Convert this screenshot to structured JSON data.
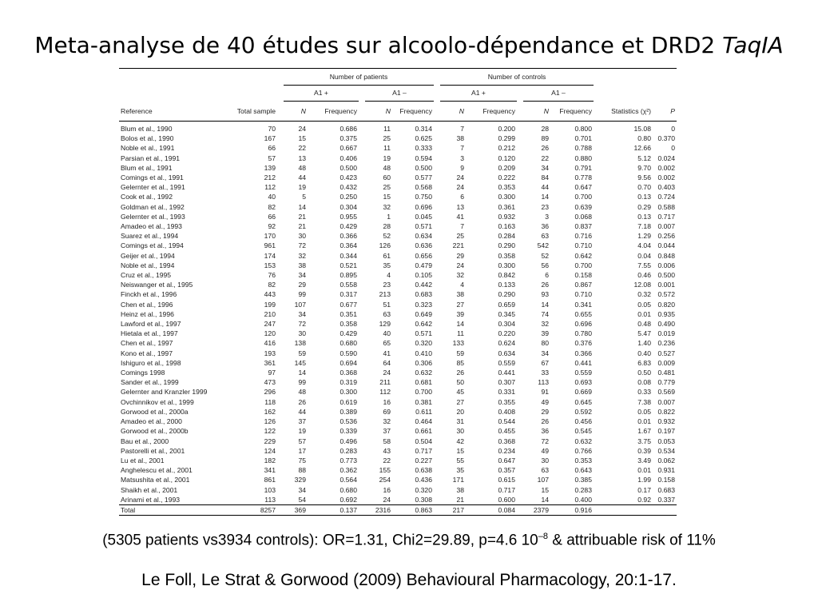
{
  "slide": {
    "title_main": "Meta-analyse de 40 études sur alcoolo-dépendance et DRD2 ",
    "title_italic": "TaqIA",
    "summary_main": "(5305 patients vs3934 controls): OR=1.31, Chi2=29.89, p=4.6 10",
    "summary_sup": "–8",
    "summary_tail": "  & attribuable risk of 11%",
    "citation": "Le Foll, Le Strat & Gorwood (2009) Behavioural Pharmacology, 20:1-17."
  },
  "table": {
    "group_patients": "Number of patients",
    "group_controls": "Number of controls",
    "a1_plus": "A1 +",
    "a1_minus": "A1 –",
    "col_reference": "Reference",
    "col_total": "Total sample",
    "col_n": "N",
    "col_freq": "Frequency",
    "col_stats": "Statistics (χ²)",
    "col_p": "P",
    "rows": [
      {
        "ref": "Blum et al., 1990",
        "total": "70",
        "pn1": "24",
        "pf1": "0.686",
        "pn2": "11",
        "pf2": "0.314",
        "cn1": "7",
        "cf1": "0.200",
        "cn2": "28",
        "cf2": "0.800",
        "chi": "15.08",
        "p": "0"
      },
      {
        "ref": "Bolos et al., 1990",
        "total": "167",
        "pn1": "15",
        "pf1": "0.375",
        "pn2": "25",
        "pf2": "0.625",
        "cn1": "38",
        "cf1": "0.299",
        "cn2": "89",
        "cf2": "0.701",
        "chi": "0.80",
        "p": "0.370"
      },
      {
        "ref": "Noble et al., 1991",
        "total": "66",
        "pn1": "22",
        "pf1": "0.667",
        "pn2": "11",
        "pf2": "0.333",
        "cn1": "7",
        "cf1": "0.212",
        "cn2": "26",
        "cf2": "0.788",
        "chi": "12.66",
        "p": "0"
      },
      {
        "ref": "Parsian et al., 1991",
        "total": "57",
        "pn1": "13",
        "pf1": "0.406",
        "pn2": "19",
        "pf2": "0.594",
        "cn1": "3",
        "cf1": "0.120",
        "cn2": "22",
        "cf2": "0.880",
        "chi": "5.12",
        "p": "0.024"
      },
      {
        "ref": "Blum et al., 1991",
        "total": "139",
        "pn1": "48",
        "pf1": "0.500",
        "pn2": "48",
        "pf2": "0.500",
        "cn1": "9",
        "cf1": "0.209",
        "cn2": "34",
        "cf2": "0.791",
        "chi": "9.70",
        "p": "0.002"
      },
      {
        "ref": "Comings et al., 1991",
        "total": "212",
        "pn1": "44",
        "pf1": "0.423",
        "pn2": "60",
        "pf2": "0.577",
        "cn1": "24",
        "cf1": "0.222",
        "cn2": "84",
        "cf2": "0.778",
        "chi": "9.56",
        "p": "0.002"
      },
      {
        "ref": "Gelernter et al., 1991",
        "total": "112",
        "pn1": "19",
        "pf1": "0.432",
        "pn2": "25",
        "pf2": "0.568",
        "cn1": "24",
        "cf1": "0.353",
        "cn2": "44",
        "cf2": "0.647",
        "chi": "0.70",
        "p": "0.403"
      },
      {
        "ref": "Cook et al., 1992",
        "total": "40",
        "pn1": "5",
        "pf1": "0.250",
        "pn2": "15",
        "pf2": "0.750",
        "cn1": "6",
        "cf1": "0.300",
        "cn2": "14",
        "cf2": "0.700",
        "chi": "0.13",
        "p": "0.724"
      },
      {
        "ref": "Goldman et al., 1992",
        "total": "82",
        "pn1": "14",
        "pf1": "0.304",
        "pn2": "32",
        "pf2": "0.696",
        "cn1": "13",
        "cf1": "0.361",
        "cn2": "23",
        "cf2": "0.639",
        "chi": "0.29",
        "p": "0.588"
      },
      {
        "ref": "Gelernter et al., 1993",
        "total": "66",
        "pn1": "21",
        "pf1": "0.955",
        "pn2": "1",
        "pf2": "0.045",
        "cn1": "41",
        "cf1": "0.932",
        "cn2": "3",
        "cf2": "0.068",
        "chi": "0.13",
        "p": "0.717"
      },
      {
        "ref": "Amadeo et al., 1993",
        "total": "92",
        "pn1": "21",
        "pf1": "0.429",
        "pn2": "28",
        "pf2": "0.571",
        "cn1": "7",
        "cf1": "0.163",
        "cn2": "36",
        "cf2": "0.837",
        "chi": "7.18",
        "p": "0.007"
      },
      {
        "ref": "Suarez et al., 1994",
        "total": "170",
        "pn1": "30",
        "pf1": "0.366",
        "pn2": "52",
        "pf2": "0.634",
        "cn1": "25",
        "cf1": "0.284",
        "cn2": "63",
        "cf2": "0.716",
        "chi": "1.29",
        "p": "0.256"
      },
      {
        "ref": "Comings et al., 1994",
        "total": "961",
        "pn1": "72",
        "pf1": "0.364",
        "pn2": "126",
        "pf2": "0.636",
        "cn1": "221",
        "cf1": "0.290",
        "cn2": "542",
        "cf2": "0.710",
        "chi": "4.04",
        "p": "0.044"
      },
      {
        "ref": "Geijer et al., 1994",
        "total": "174",
        "pn1": "32",
        "pf1": "0.344",
        "pn2": "61",
        "pf2": "0.656",
        "cn1": "29",
        "cf1": "0.358",
        "cn2": "52",
        "cf2": "0.642",
        "chi": "0.04",
        "p": "0.848"
      },
      {
        "ref": "Noble et al., 1994",
        "total": "153",
        "pn1": "38",
        "pf1": "0.521",
        "pn2": "35",
        "pf2": "0.479",
        "cn1": "24",
        "cf1": "0.300",
        "cn2": "56",
        "cf2": "0.700",
        "chi": "7.55",
        "p": "0.006"
      },
      {
        "ref": "Cruz et al., 1995",
        "total": "76",
        "pn1": "34",
        "pf1": "0.895",
        "pn2": "4",
        "pf2": "0.105",
        "cn1": "32",
        "cf1": "0.842",
        "cn2": "6",
        "cf2": "0.158",
        "chi": "0.46",
        "p": "0.500"
      },
      {
        "ref": "Neiswanger et al., 1995",
        "total": "82",
        "pn1": "29",
        "pf1": "0.558",
        "pn2": "23",
        "pf2": "0.442",
        "cn1": "4",
        "cf1": "0.133",
        "cn2": "26",
        "cf2": "0.867",
        "chi": "12.08",
        "p": "0.001"
      },
      {
        "ref": "Finckh et al., 1996",
        "total": "443",
        "pn1": "99",
        "pf1": "0.317",
        "pn2": "213",
        "pf2": "0.683",
        "cn1": "38",
        "cf1": "0.290",
        "cn2": "93",
        "cf2": "0.710",
        "chi": "0.32",
        "p": "0.572"
      },
      {
        "ref": "Chen et al., 1996",
        "total": "199",
        "pn1": "107",
        "pf1": "0.677",
        "pn2": "51",
        "pf2": "0.323",
        "cn1": "27",
        "cf1": "0.659",
        "cn2": "14",
        "cf2": "0.341",
        "chi": "0.05",
        "p": "0.820"
      },
      {
        "ref": "Heinz et al., 1996",
        "total": "210",
        "pn1": "34",
        "pf1": "0.351",
        "pn2": "63",
        "pf2": "0.649",
        "cn1": "39",
        "cf1": "0.345",
        "cn2": "74",
        "cf2": "0.655",
        "chi": "0.01",
        "p": "0.935"
      },
      {
        "ref": "Lawford et al., 1997",
        "total": "247",
        "pn1": "72",
        "pf1": "0.358",
        "pn2": "129",
        "pf2": "0.642",
        "cn1": "14",
        "cf1": "0.304",
        "cn2": "32",
        "cf2": "0.696",
        "chi": "0.48",
        "p": "0.490"
      },
      {
        "ref": "Hietala et al., 1997",
        "total": "120",
        "pn1": "30",
        "pf1": "0.429",
        "pn2": "40",
        "pf2": "0.571",
        "cn1": "11",
        "cf1": "0.220",
        "cn2": "39",
        "cf2": "0.780",
        "chi": "5.47",
        "p": "0.019"
      },
      {
        "ref": "Chen et al., 1997",
        "total": "416",
        "pn1": "138",
        "pf1": "0.680",
        "pn2": "65",
        "pf2": "0.320",
        "cn1": "133",
        "cf1": "0.624",
        "cn2": "80",
        "cf2": "0.376",
        "chi": "1.40",
        "p": "0.236"
      },
      {
        "ref": "Kono et al., 1997",
        "total": "193",
        "pn1": "59",
        "pf1": "0.590",
        "pn2": "41",
        "pf2": "0.410",
        "cn1": "59",
        "cf1": "0.634",
        "cn2": "34",
        "cf2": "0.366",
        "chi": "0.40",
        "p": "0.527"
      },
      {
        "ref": "Ishiguro et al., 1998",
        "total": "361",
        "pn1": "145",
        "pf1": "0.694",
        "pn2": "64",
        "pf2": "0.306",
        "cn1": "85",
        "cf1": "0.559",
        "cn2": "67",
        "cf2": "0.441",
        "chi": "6.83",
        "p": "0.009"
      },
      {
        "ref": "Comings 1998",
        "total": "97",
        "pn1": "14",
        "pf1": "0.368",
        "pn2": "24",
        "pf2": "0.632",
        "cn1": "26",
        "cf1": "0.441",
        "cn2": "33",
        "cf2": "0.559",
        "chi": "0.50",
        "p": "0.481"
      },
      {
        "ref": "Sander et al., 1999",
        "total": "473",
        "pn1": "99",
        "pf1": "0.319",
        "pn2": "211",
        "pf2": "0.681",
        "cn1": "50",
        "cf1": "0.307",
        "cn2": "113",
        "cf2": "0.693",
        "chi": "0.08",
        "p": "0.779"
      },
      {
        "ref": "Gelernter and Kranzler 1999",
        "total": "296",
        "pn1": "48",
        "pf1": "0.300",
        "pn2": "112",
        "pf2": "0.700",
        "cn1": "45",
        "cf1": "0.331",
        "cn2": "91",
        "cf2": "0.669",
        "chi": "0.33",
        "p": "0.569"
      },
      {
        "ref": "Ovchinnikov et al., 1999",
        "total": "118",
        "pn1": "26",
        "pf1": "0.619",
        "pn2": "16",
        "pf2": "0.381",
        "cn1": "27",
        "cf1": "0.355",
        "cn2": "49",
        "cf2": "0.645",
        "chi": "7.38",
        "p": "0.007"
      },
      {
        "ref": "Gorwood et al., 2000a",
        "total": "162",
        "pn1": "44",
        "pf1": "0.389",
        "pn2": "69",
        "pf2": "0.611",
        "cn1": "20",
        "cf1": "0.408",
        "cn2": "29",
        "cf2": "0.592",
        "chi": "0.05",
        "p": "0.822"
      },
      {
        "ref": "Amadeo et al., 2000",
        "total": "126",
        "pn1": "37",
        "pf1": "0.536",
        "pn2": "32",
        "pf2": "0.464",
        "cn1": "31",
        "cf1": "0.544",
        "cn2": "26",
        "cf2": "0.456",
        "chi": "0.01",
        "p": "0.932"
      },
      {
        "ref": "Gorwood et al., 2000b",
        "total": "122",
        "pn1": "19",
        "pf1": "0.339",
        "pn2": "37",
        "pf2": "0.661",
        "cn1": "30",
        "cf1": "0.455",
        "cn2": "36",
        "cf2": "0.545",
        "chi": "1.67",
        "p": "0.197"
      },
      {
        "ref": "Bau et al., 2000",
        "total": "229",
        "pn1": "57",
        "pf1": "0.496",
        "pn2": "58",
        "pf2": "0.504",
        "cn1": "42",
        "cf1": "0.368",
        "cn2": "72",
        "cf2": "0.632",
        "chi": "3.75",
        "p": "0.053"
      },
      {
        "ref": "Pastorelli et al., 2001",
        "total": "124",
        "pn1": "17",
        "pf1": "0.283",
        "pn2": "43",
        "pf2": "0.717",
        "cn1": "15",
        "cf1": "0.234",
        "cn2": "49",
        "cf2": "0.766",
        "chi": "0.39",
        "p": "0.534"
      },
      {
        "ref": "Lu et al., 2001",
        "total": "182",
        "pn1": "75",
        "pf1": "0.773",
        "pn2": "22",
        "pf2": "0.227",
        "cn1": "55",
        "cf1": "0.647",
        "cn2": "30",
        "cf2": "0.353",
        "chi": "3.49",
        "p": "0.062"
      },
      {
        "ref": "Anghelescu et al., 2001",
        "total": "341",
        "pn1": "88",
        "pf1": "0.362",
        "pn2": "155",
        "pf2": "0.638",
        "cn1": "35",
        "cf1": "0.357",
        "cn2": "63",
        "cf2": "0.643",
        "chi": "0.01",
        "p": "0.931"
      },
      {
        "ref": "Matsushita et al., 2001",
        "total": "861",
        "pn1": "329",
        "pf1": "0.564",
        "pn2": "254",
        "pf2": "0.436",
        "cn1": "171",
        "cf1": "0.615",
        "cn2": "107",
        "cf2": "0.385",
        "chi": "1.99",
        "p": "0.158"
      },
      {
        "ref": "Shaikh et al., 2001",
        "total": "103",
        "pn1": "34",
        "pf1": "0.680",
        "pn2": "16",
        "pf2": "0.320",
        "cn1": "38",
        "cf1": "0.717",
        "cn2": "15",
        "cf2": "0.283",
        "chi": "0.17",
        "p": "0.683"
      },
      {
        "ref": "Arinami et al., 1993",
        "total": "113",
        "pn1": "54",
        "pf1": "0.692",
        "pn2": "24",
        "pf2": "0.308",
        "cn1": "21",
        "cf1": "0.600",
        "cn2": "14",
        "cf2": "0.400",
        "chi": "0.92",
        "p": "0.337"
      }
    ],
    "total_row": {
      "ref": "Total",
      "total": "8257",
      "pn1": "369",
      "pf1": "0.137",
      "pn2": "2316",
      "pf2": "0.863",
      "cn1": "217",
      "cf1": "0.084",
      "cn2": "2379",
      "cf2": "0.916",
      "chi": "",
      "p": ""
    }
  }
}
